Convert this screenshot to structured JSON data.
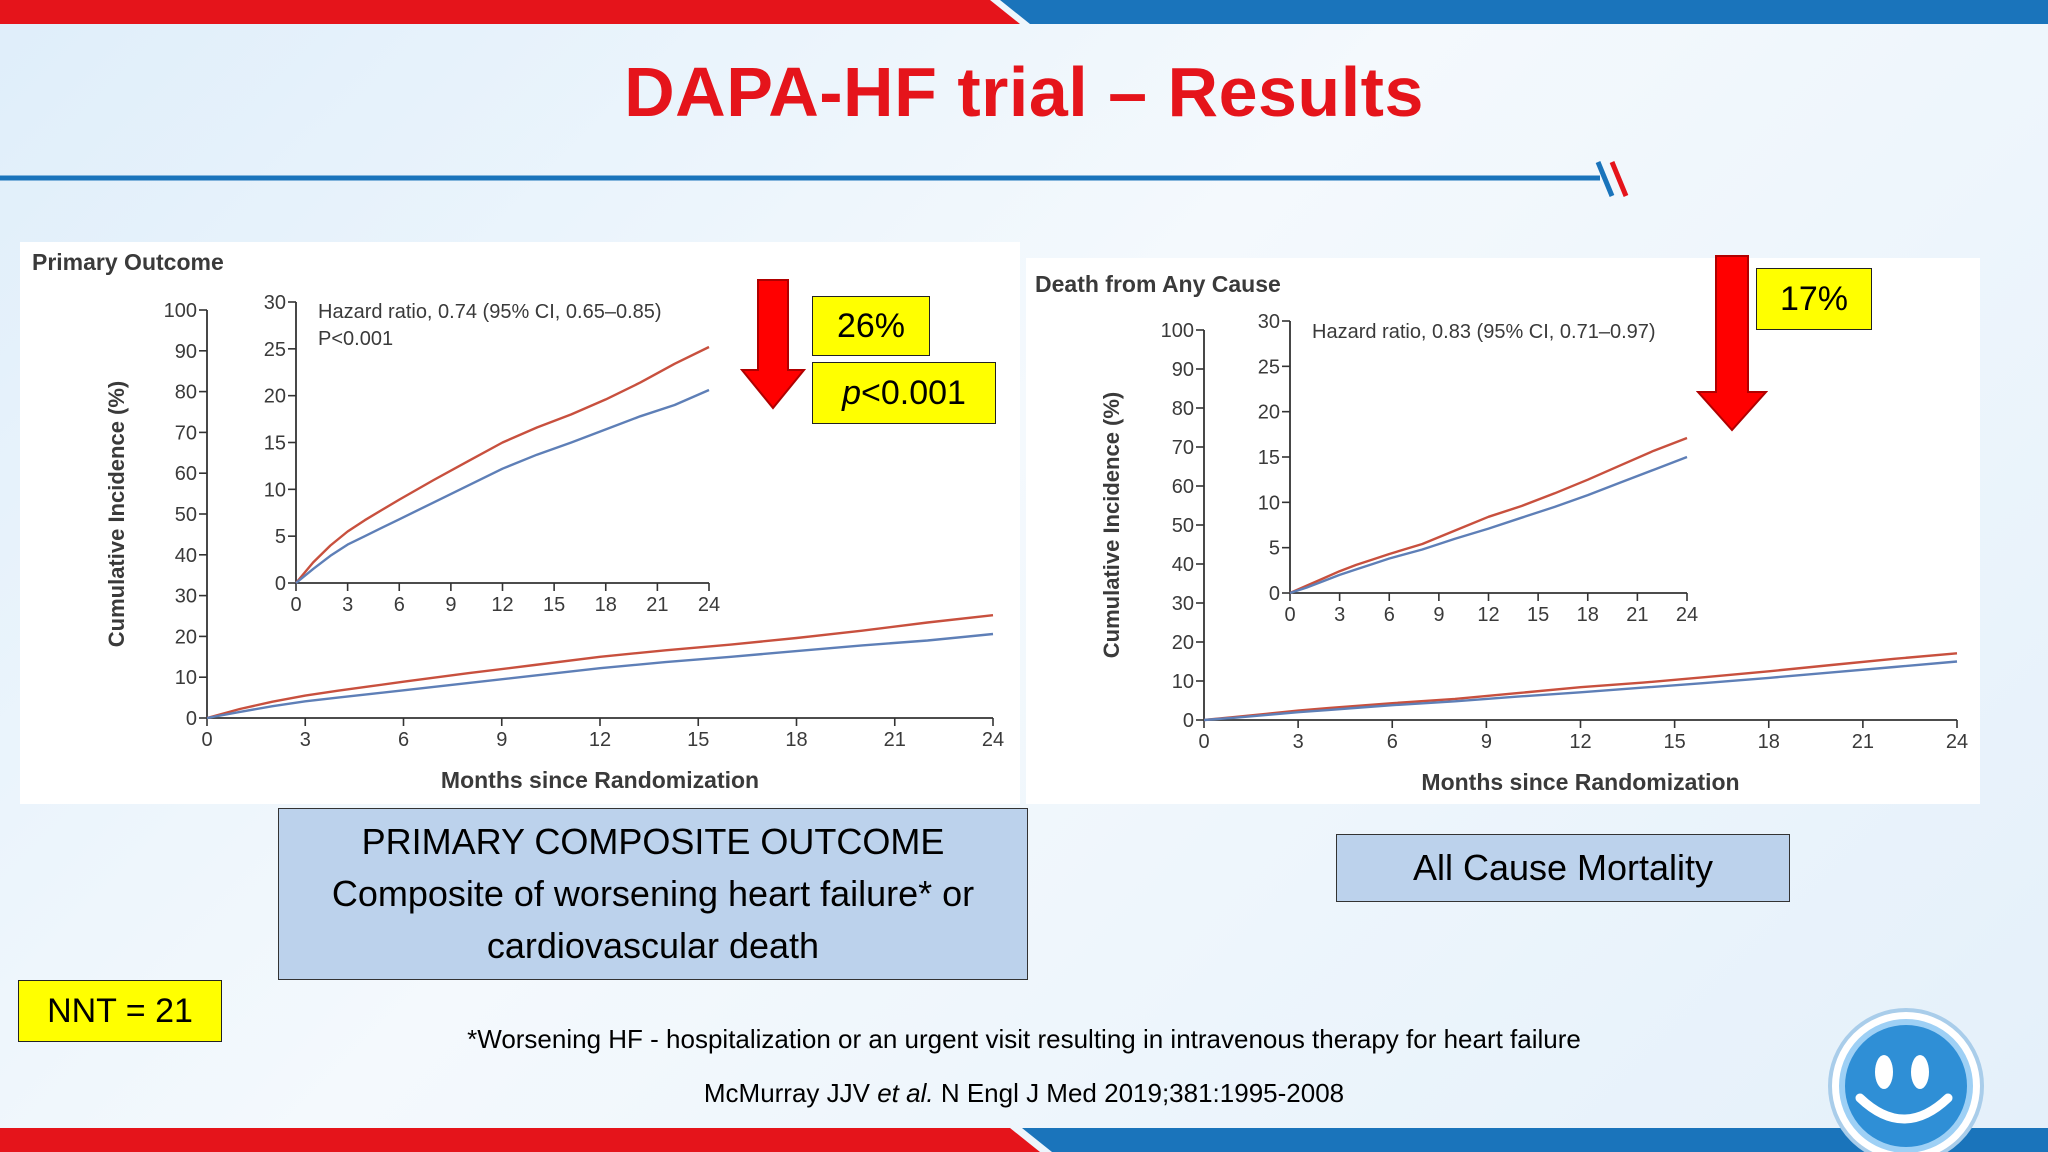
{
  "slide": {
    "title": "DAPA-HF trial – Results",
    "colors": {
      "red": "#e5141b",
      "blue": "#1a74bb",
      "accent_yellow": "#ffff00",
      "box_blue": "#bcd2ec"
    }
  },
  "chart_data": [
    {
      "type": "line",
      "title": "Primary Outcome",
      "xlabel": "Months since Randomization",
      "ylabel": "Cumulative Incidence (%)",
      "xlim": [
        0,
        24
      ],
      "ylim": [
        0,
        100
      ],
      "x_ticks": [
        0,
        3,
        6,
        9,
        12,
        15,
        18,
        21,
        24
      ],
      "y_ticks": [
        0,
        10,
        20,
        30,
        40,
        50,
        60,
        70,
        80,
        90,
        100
      ],
      "series": [
        {
          "color": "#c8503e",
          "x": [
            0,
            1,
            2,
            3,
            4,
            5,
            6,
            8,
            10,
            12,
            14,
            16,
            18,
            20,
            22,
            24
          ],
          "y": [
            0,
            2.2,
            4,
            5.5,
            6.7,
            7.8,
            8.9,
            11,
            13,
            15,
            16.6,
            18,
            19.6,
            21.4,
            23.4,
            25.2
          ]
        },
        {
          "color": "#5e7fb7",
          "x": [
            0,
            1,
            2,
            3,
            4,
            5,
            6,
            8,
            10,
            12,
            14,
            16,
            18,
            20,
            22,
            24
          ],
          "y": [
            0,
            1.5,
            2.9,
            4.1,
            5,
            5.9,
            6.8,
            8.6,
            10.4,
            12.2,
            13.7,
            15,
            16.4,
            17.8,
            19,
            20.6
          ]
        }
      ],
      "inset": {
        "annotation_1": "Hazard ratio, 0.74 (95% CI, 0.65–0.85)",
        "annotation_2": "P<0.001",
        "xlim": [
          0,
          24
        ],
        "ylim": [
          0,
          30
        ],
        "x_ticks": [
          0,
          3,
          6,
          9,
          12,
          15,
          18,
          21,
          24
        ],
        "y_ticks": [
          0,
          5,
          10,
          15,
          20,
          25,
          30
        ]
      }
    },
    {
      "type": "line",
      "title": "Death from Any Cause",
      "xlabel": "Months since Randomization",
      "ylabel": "Cumulative Incidence (%)",
      "xlim": [
        0,
        24
      ],
      "ylim": [
        0,
        100
      ],
      "x_ticks": [
        0,
        3,
        6,
        9,
        12,
        15,
        18,
        21,
        24
      ],
      "y_ticks": [
        0,
        10,
        20,
        30,
        40,
        50,
        60,
        70,
        80,
        90,
        100
      ],
      "series": [
        {
          "color": "#c8503e",
          "x": [
            0,
            1,
            2,
            3,
            4,
            5,
            6,
            8,
            10,
            12,
            14,
            16,
            18,
            20,
            22,
            24
          ],
          "y": [
            0,
            0.8,
            1.6,
            2.4,
            3.1,
            3.7,
            4.3,
            5.4,
            6.9,
            8.4,
            9.6,
            11,
            12.5,
            14.1,
            15.7,
            17.1
          ]
        },
        {
          "color": "#5e7fb7",
          "x": [
            0,
            1,
            2,
            3,
            4,
            5,
            6,
            8,
            10,
            12,
            14,
            16,
            18,
            20,
            22,
            24
          ],
          "y": [
            0,
            0.6,
            1.3,
            2,
            2.6,
            3.2,
            3.8,
            4.8,
            6,
            7.1,
            8.3,
            9.5,
            10.8,
            12.2,
            13.6,
            15
          ]
        }
      ],
      "inset": {
        "annotation_1": "Hazard ratio, 0.83 (95% CI, 0.71–0.97)",
        "xlim": [
          0,
          24
        ],
        "ylim": [
          0,
          30
        ],
        "x_ticks": [
          0,
          3,
          6,
          9,
          12,
          15,
          18,
          21,
          24
        ],
        "y_ticks": [
          0,
          5,
          10,
          15,
          20,
          25,
          30
        ]
      }
    }
  ],
  "callouts": {
    "primary_reduction": "26%",
    "primary_p": "<0.001",
    "primary_p_italic": "p",
    "mortality_reduction": "17%",
    "nnt": "NNT = 21"
  },
  "boxes": {
    "primary_line1": "PRIMARY COMPOSITE OUTCOME",
    "primary_line2": "Composite of worsening heart failure* or",
    "primary_line3": "cardiovascular death",
    "mortality": "All Cause Mortality"
  },
  "footer": {
    "footnote": "*Worsening HF - hospitalization or an urgent visit resulting in intravenous therapy for heart failure",
    "citation_pre": "McMurray JJV ",
    "citation_italic": "et al.",
    "citation_post": " N Engl J Med 2019;381:1995-2008"
  },
  "icons": [
    "smiley-logo-icon",
    "down-arrow-icon"
  ]
}
